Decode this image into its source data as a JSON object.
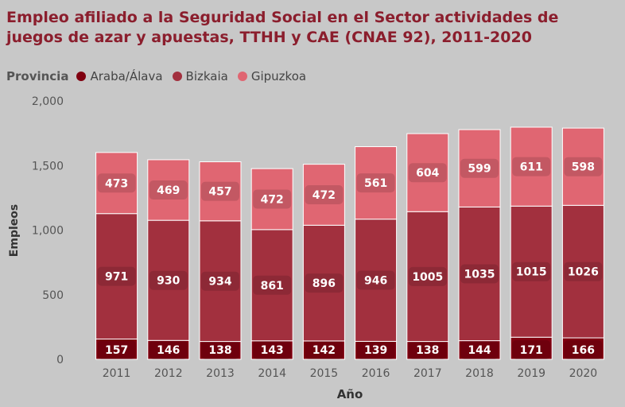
{
  "title": "Empleo afiliado a la Seguridad Social en el Sector actividades de juegos de azar y apuestas, TTHH y CAE (CNAE 92), 2011-2020",
  "legend": {
    "title": "Provincia",
    "items": [
      {
        "label": "Araba/Álava",
        "color": "#800010"
      },
      {
        "label": "Bizkaia",
        "color": "#a2303e"
      },
      {
        "label": "Gipuzkoa",
        "color": "#e06672"
      }
    ]
  },
  "chart_data": {
    "type": "bar",
    "stacked": true,
    "title": "Empleo afiliado a la Seguridad Social en el Sector actividades de juegos de azar y apuestas, TTHH y CAE (CNAE 92), 2011-2020",
    "xlabel": "Año",
    "ylabel": "Empleos",
    "ylim": [
      0,
      2000
    ],
    "yticks": [
      "0",
      "500",
      "1,000",
      "1,500",
      "2,000"
    ],
    "categories": [
      "2011",
      "2012",
      "2013",
      "2014",
      "2015",
      "2016",
      "2017",
      "2018",
      "2019",
      "2020"
    ],
    "series": [
      {
        "name": "Araba/Álava",
        "color": "#800010",
        "values": [
          157,
          146,
          138,
          143,
          142,
          139,
          138,
          144,
          171,
          166
        ]
      },
      {
        "name": "Bizkaia",
        "color": "#a2303e",
        "values": [
          971,
          930,
          934,
          861,
          896,
          946,
          1005,
          1035,
          1015,
          1026
        ]
      },
      {
        "name": "Gipuzkoa",
        "color": "#e06672",
        "values": [
          473,
          469,
          457,
          472,
          472,
          561,
          604,
          599,
          611,
          598
        ]
      }
    ],
    "legend_position": "top-left",
    "grid": false
  }
}
